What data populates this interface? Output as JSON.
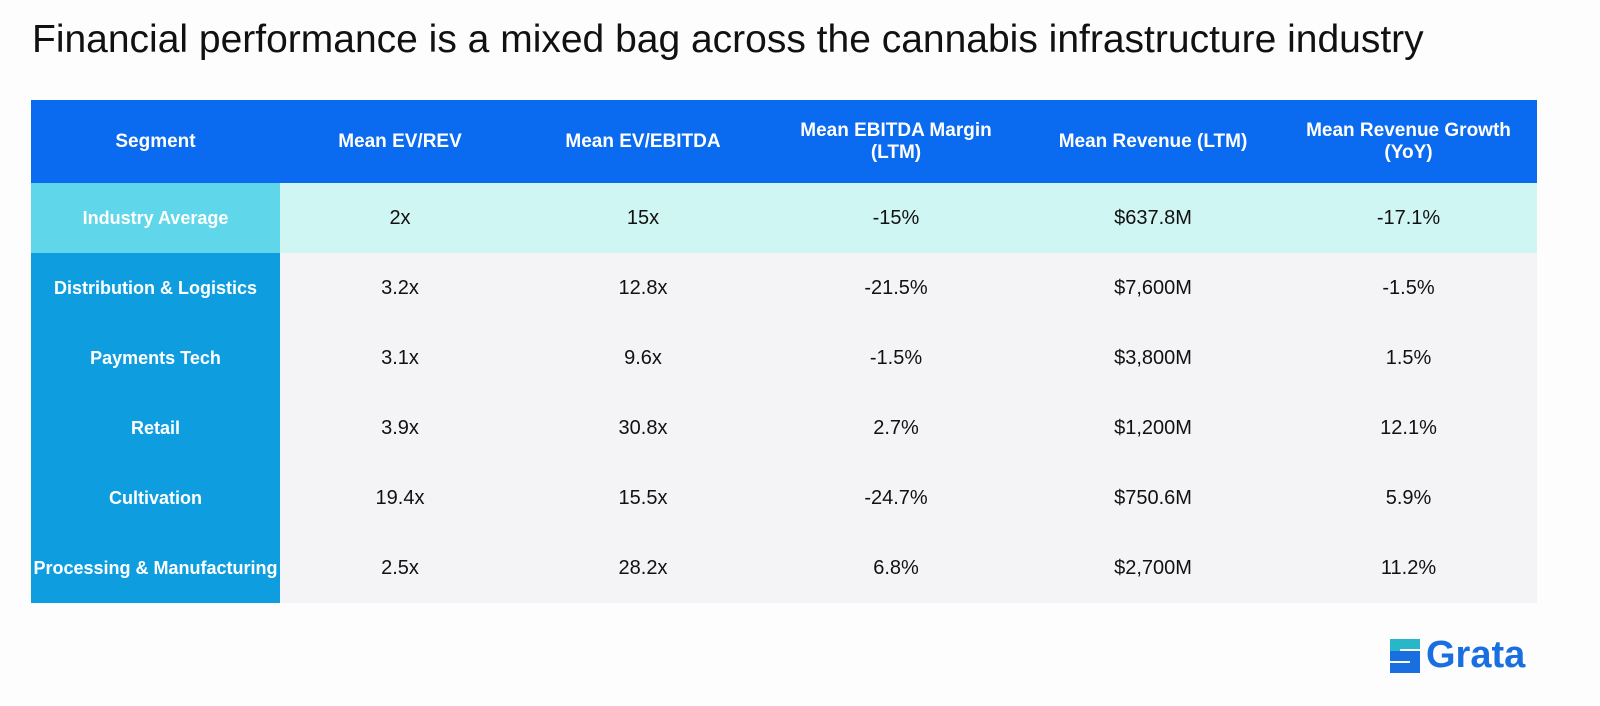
{
  "header": {
    "title": "Financial performance is a mixed bag across the cannabis infrastructure industry"
  },
  "table": {
    "header": [
      "Segment",
      "Mean EV/REV",
      "Mean EV/EBITDA",
      "Mean EBITDA Margin (LTM)",
      "Mean Revenue (LTM)",
      "Mean Revenue Growth (YoY)"
    ],
    "rows": [
      [
        "Industry Average",
        "2x",
        "15x",
        "-15%",
        "$637.8M",
        "-17.1%"
      ],
      [
        "Distribution & Logistics",
        "3.2x",
        "12.8x",
        "-21.5%",
        "$7,600M",
        "-1.5%"
      ],
      [
        "Payments Tech",
        "3.1x",
        "9.6x",
        "-1.5%",
        "$3,800M",
        "1.5%"
      ],
      [
        "Retail",
        "3.9x",
        "30.8x",
        "2.7%",
        "$1,200M",
        "12.1%"
      ],
      [
        "Cultivation",
        "19.4x",
        "15.5x",
        "-24.7%",
        "$750.6M",
        "5.9%"
      ],
      [
        "Processing & Manufacturing",
        "2.5x",
        "28.2x",
        "6.8%",
        "$2,700M",
        "11.2%"
      ]
    ]
  },
  "logo": {
    "text": "Grata"
  }
}
